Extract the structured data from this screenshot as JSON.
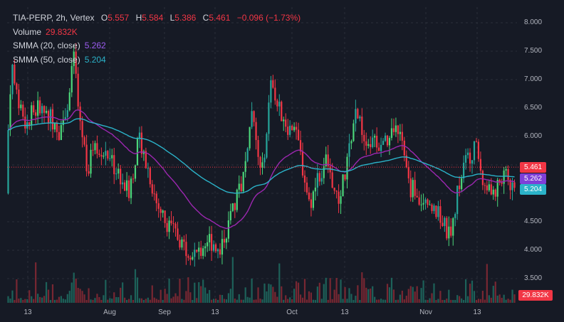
{
  "header": {
    "symbol": "TIA-PERP, 2h, Vertex",
    "open_label": "O",
    "open": "5.557",
    "high_label": "H",
    "high": "5.584",
    "low_label": "L",
    "low": "5.386",
    "close_label": "C",
    "close": "5.461",
    "change": "−0.096 (−1.73%)",
    "volume_label": "Volume",
    "volume": "29.832K",
    "smma20_label": "SMMA (20, close)",
    "smma20": "5.262",
    "smma50_label": "SMMA (50, close)",
    "smma50": "5.204"
  },
  "price_scale": {
    "ticks": [
      "8.000",
      "7.500",
      "7.000",
      "6.500",
      "6.000",
      "5.500",
      "5.000",
      "4.500",
      "4.000",
      "3.500"
    ],
    "price_badge": "5.461",
    "smma20_badge": "5.262",
    "smma50_badge": "5.204",
    "volume_badge": "29.832K"
  },
  "time_scale": {
    "ticks": [
      "13",
      "Aug",
      "Sep",
      "13",
      "Oct",
      "13",
      "Nov",
      "13"
    ]
  },
  "colors": {
    "background": "#161a25",
    "up": "#26a69a",
    "up_bright": "#4cd67a",
    "down": "#f23645",
    "smma20": "#9c27b0",
    "smma50": "#2bb3c9",
    "grid": "#2a2e39"
  },
  "chart_data": {
    "type": "candlestick",
    "ylim": [
      3.3,
      8.15
    ],
    "anchors": [
      [
        0,
        5.0
      ],
      [
        4,
        6.5
      ],
      [
        8,
        7.3
      ],
      [
        14,
        6.7
      ],
      [
        25,
        6.2
      ],
      [
        42,
        6.5
      ],
      [
        60,
        6.4
      ],
      [
        75,
        6.1
      ],
      [
        90,
        6.8
      ],
      [
        96,
        7.6
      ],
      [
        100,
        6.6
      ],
      [
        115,
        5.4
      ],
      [
        124,
        5.9
      ],
      [
        140,
        5.7
      ],
      [
        160,
        5.3
      ],
      [
        172,
        5.0
      ],
      [
        187,
        6.0
      ],
      [
        198,
        5.5
      ],
      [
        212,
        4.8
      ],
      [
        230,
        4.4
      ],
      [
        250,
        4.1
      ],
      [
        268,
        3.9
      ],
      [
        283,
        4.2
      ],
      [
        300,
        4.05
      ],
      [
        317,
        4.6
      ],
      [
        333,
        5.3
      ],
      [
        345,
        6.4
      ],
      [
        358,
        5.3
      ],
      [
        365,
        6.0
      ],
      [
        372,
        6.9
      ],
      [
        382,
        6.5
      ],
      [
        390,
        6.3
      ],
      [
        410,
        5.9
      ],
      [
        426,
        4.8
      ],
      [
        437,
        5.2
      ],
      [
        450,
        5.6
      ],
      [
        466,
        4.8
      ],
      [
        478,
        5.5
      ],
      [
        490,
        6.4
      ],
      [
        500,
        6.1
      ],
      [
        512,
        5.9
      ],
      [
        530,
        5.8
      ],
      [
        545,
        6.1
      ],
      [
        555,
        6.2
      ],
      [
        564,
        5.1
      ],
      [
        575,
        5.1
      ],
      [
        590,
        4.7
      ],
      [
        608,
        4.6
      ],
      [
        624,
        4.2
      ],
      [
        635,
        5.1
      ],
      [
        645,
        5.6
      ],
      [
        660,
        5.8
      ],
      [
        672,
        5.1
      ],
      [
        685,
        5.0
      ],
      [
        700,
        5.4
      ],
      [
        712,
        5.0
      ],
      [
        718,
        4.9
      ],
      [
        722,
        5.5
      ]
    ],
    "smma20": [
      5.262
    ],
    "smma50": [
      5.204
    ],
    "last_close": 5.461
  }
}
